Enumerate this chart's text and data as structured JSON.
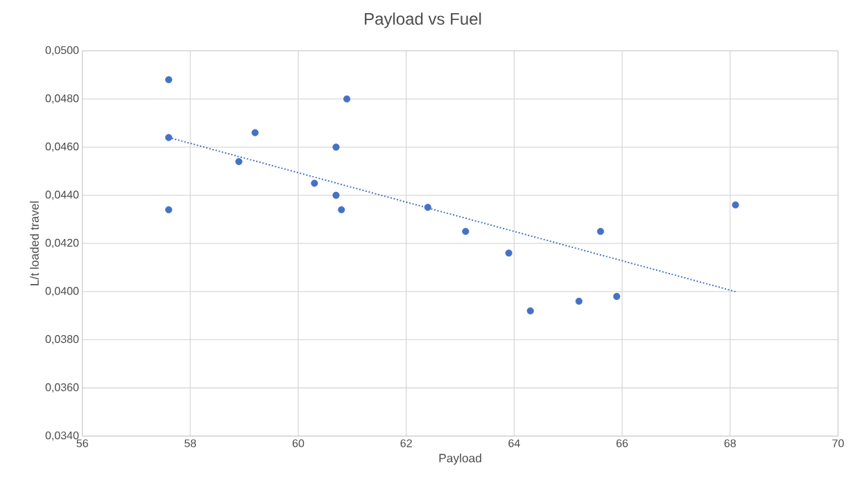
{
  "chart_data": {
    "type": "scatter",
    "title": "Payload vs Fuel",
    "xlabel": "Payload",
    "ylabel": "L/t  loaded travel",
    "xlim": [
      56,
      70
    ],
    "xticks": [
      56,
      58,
      60,
      62,
      64,
      66,
      68,
      70
    ],
    "ylim": [
      0.034,
      0.05
    ],
    "yticks": [
      {
        "value": 0.034,
        "label": "0,0340"
      },
      {
        "value": 0.036,
        "label": "0,0360"
      },
      {
        "value": 0.038,
        "label": "0,0380"
      },
      {
        "value": 0.04,
        "label": "0,0400"
      },
      {
        "value": 0.042,
        "label": "0,0420"
      },
      {
        "value": 0.044,
        "label": "0,0440"
      },
      {
        "value": 0.046,
        "label": "0,0460"
      },
      {
        "value": 0.048,
        "label": "0,0480"
      },
      {
        "value": 0.05,
        "label": "0,0500"
      }
    ],
    "grid": true,
    "series": [
      {
        "color": "#4472c4",
        "marker": "circle",
        "x": [
          57.6,
          57.6,
          57.6,
          58.9,
          59.2,
          60.3,
          60.7,
          60.7,
          60.8,
          60.9,
          62.4,
          63.1,
          63.9,
          64.3,
          65.2,
          65.6,
          65.9,
          68.1
        ],
        "values": [
          0.0488,
          0.0464,
          0.0434,
          0.0454,
          0.0466,
          0.0445,
          0.046,
          0.044,
          0.0434,
          0.048,
          0.0435,
          0.0425,
          0.0416,
          0.0392,
          0.0396,
          0.0425,
          0.0398,
          0.0436
        ]
      },
      {
        "type": "line",
        "color": "#4472c4",
        "marker": "none",
        "line_style": "dotted",
        "x": [
          57.6,
          68.1
        ],
        "values": [
          0.0464,
          0.04
        ]
      }
    ]
  }
}
